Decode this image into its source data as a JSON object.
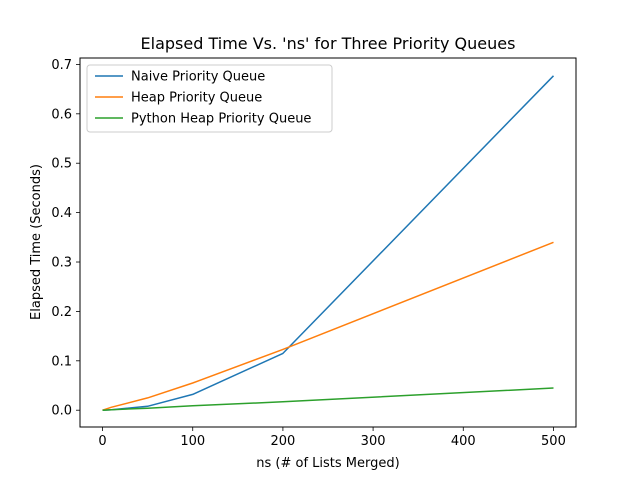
{
  "chart_data": {
    "type": "line",
    "title": "Elapsed Time Vs. 'ns' for Three Priority Queues",
    "xlabel": "ns (# of Lists Merged)",
    "ylabel": "Elapsed Time (Seconds)",
    "xlim": [
      -25,
      525
    ],
    "ylim": [
      -0.034,
      0.713
    ],
    "xticks": [
      0,
      100,
      200,
      300,
      400,
      500
    ],
    "yticks": [
      0.0,
      0.1,
      0.2,
      0.3,
      0.4,
      0.5,
      0.6,
      0.7
    ],
    "xtick_labels": [
      "0",
      "100",
      "200",
      "300",
      "400",
      "500"
    ],
    "ytick_labels": [
      "0.0",
      "0.1",
      "0.2",
      "0.3",
      "0.4",
      "0.5",
      "0.6",
      "0.7"
    ],
    "grid": false,
    "legend_position": "top-left",
    "x": [
      0,
      10,
      50,
      100,
      200,
      500
    ],
    "series": [
      {
        "name": "Naive Priority Queue",
        "color": "#1f77b4",
        "values": [
          0.0,
          0.001,
          0.008,
          0.032,
          0.115,
          0.677
        ]
      },
      {
        "name": "Heap Priority Queue",
        "color": "#ff7f0e",
        "values": [
          0.0,
          0.006,
          0.025,
          0.055,
          0.123,
          0.34
        ]
      },
      {
        "name": "Python Heap Priority Queue",
        "color": "#2ca02c",
        "values": [
          0.0,
          0.001,
          0.004,
          0.009,
          0.017,
          0.045
        ]
      }
    ]
  }
}
